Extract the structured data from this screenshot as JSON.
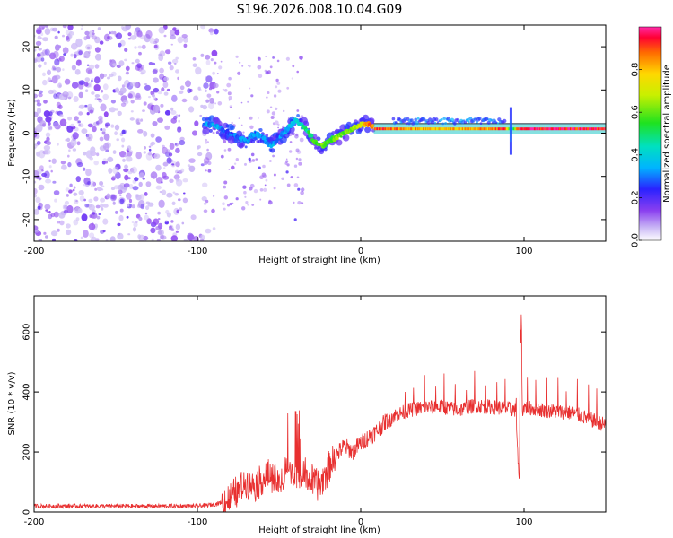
{
  "title": "S196.2026.008.10.04.G09",
  "colors": {
    "snr_line": "#e83030",
    "scatter": "#8a3ff0",
    "track_core": "#e83b3b",
    "frame": "#000000"
  },
  "chart_data": [
    {
      "type": "heatmap",
      "title": "S196.2026.008.10.04.G09",
      "xlabel": "Height of straight line (km)",
      "ylabel": "Frequency (Hz)",
      "xlim": [
        -200,
        150
      ],
      "ylim": [
        -25,
        25
      ],
      "xticks": [
        "-200",
        "-100",
        "0",
        "100"
      ],
      "xtick_values": [
        -200,
        -100,
        0,
        100
      ],
      "yticks": [
        "-20",
        "-10",
        "0",
        "10",
        "20"
      ],
      "ytick_values": [
        -20,
        -10,
        0,
        10,
        20
      ],
      "colorbar": {
        "label": "Normalized spectral amplitude",
        "range": [
          0,
          1
        ],
        "ticks": [
          "0.0",
          "0.2",
          "0.4",
          "0.6",
          "0.8"
        ],
        "tick_values": [
          0.0,
          0.2,
          0.4,
          0.6,
          0.8
        ]
      },
      "noise_region_x": [
        -200,
        -88
      ],
      "track": {
        "x": [
          -96,
          -90,
          -85,
          -80,
          -75,
          -70,
          -65,
          -60,
          -55,
          -50,
          -45,
          -40,
          -36,
          -32,
          -28,
          -24,
          -20,
          -15,
          -10,
          -5,
          0,
          5,
          10,
          20,
          40,
          60,
          80,
          88,
          92,
          96,
          110,
          130,
          150
        ],
        "y": [
          2,
          2,
          1,
          0,
          -1,
          -2,
          0,
          -1,
          -3,
          -1,
          1,
          3,
          2,
          0,
          -2,
          -3,
          -2,
          -1,
          0,
          1,
          2,
          2,
          1,
          1,
          1,
          1,
          1,
          1,
          1,
          1,
          1,
          1,
          1
        ],
        "amp": [
          0.3,
          0.35,
          0.3,
          0.25,
          0.3,
          0.35,
          0.3,
          0.3,
          0.35,
          0.3,
          0.35,
          0.4,
          0.45,
          0.5,
          0.55,
          0.6,
          0.55,
          0.6,
          0.6,
          0.65,
          0.7,
          0.85,
          0.9,
          0.85,
          0.8,
          0.8,
          0.85,
          0.95,
          0.3,
          0.95,
          0.95,
          0.95,
          0.95
        ]
      }
    },
    {
      "type": "line",
      "xlabel": "Height of straight line (km)",
      "ylabel": "SNR (10 * v/v)",
      "xlim": [
        -200,
        150
      ],
      "ylim": [
        0,
        720
      ],
      "xticks": [
        "-200",
        "-100",
        "0",
        "100"
      ],
      "xtick_values": [
        -200,
        -100,
        0,
        100
      ],
      "yticks": [
        "0",
        "200",
        "400",
        "600"
      ],
      "ytick_values": [
        0,
        200,
        400,
        600
      ],
      "series": [
        {
          "name": "SNR",
          "x": [
            -200,
            -150,
            -100,
            -90,
            -80,
            -75,
            -70,
            -65,
            -60,
            -55,
            -50,
            -45,
            -40,
            -35,
            -30,
            -25,
            -20,
            -15,
            -10,
            -5,
            0,
            5,
            10,
            15,
            20,
            25,
            30,
            40,
            50,
            60,
            70,
            80,
            90,
            95,
            97,
            98,
            99,
            100,
            110,
            120,
            130,
            140,
            150
          ],
          "values": [
            20,
            20,
            20,
            25,
            40,
            70,
            100,
            90,
            110,
            120,
            90,
            150,
            110,
            130,
            100,
            90,
            150,
            190,
            220,
            200,
            230,
            250,
            270,
            300,
            320,
            330,
            340,
            350,
            350,
            340,
            355,
            350,
            345,
            340,
            90,
            650,
            340,
            350,
            340,
            335,
            330,
            310,
            290
          ]
        }
      ]
    }
  ]
}
